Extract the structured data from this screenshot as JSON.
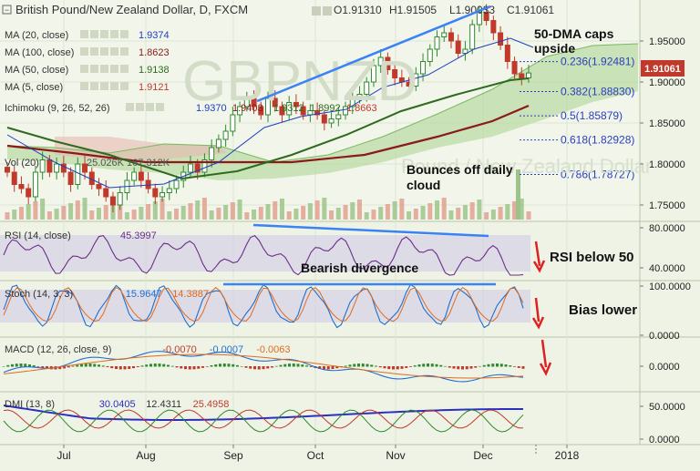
{
  "header": {
    "title": "British Pound/New Zealand Dollar, D, FXCM",
    "o": "O1.91310",
    "h": "H1.91505",
    "l": "L1.90033",
    "c": "C1.91061"
  },
  "price_badge": "1.91061",
  "watermark": "GBPNZD",
  "watermark2": "Pound / New Zealand Dollar",
  "indicators": [
    {
      "label": "MA (20, close)",
      "value": "1.9374",
      "color": "#1f3fbf"
    },
    {
      "label": "MA (100, close)",
      "value": "1.8623",
      "color": "#8b1a1a"
    },
    {
      "label": "MA (50, close)",
      "value": "1.9138",
      "color": "#2e6b1e"
    },
    {
      "label": "MA (5, close)",
      "value": "1.9121",
      "color": "#c0392b"
    }
  ],
  "ichimoku": {
    "label": "Ichimoku (9, 26, 52, 26)",
    "v1": "1.9370",
    "v2": "1.9403",
    "v3": "1.9312",
    "v4": "1.8992",
    "v5": "1.8663"
  },
  "volume_label": "Vol (20)",
  "volume_values": "25.026K  167.312K",
  "annotations": {
    "dma": "50-DMA caps upside",
    "cloud": "Bounces off daily cloud",
    "rsi": "RSI below 50",
    "divergence": "Bearish divergence",
    "bias": "Bias lower"
  },
  "fib_levels": [
    {
      "label": "0.236(1.92481)",
      "value": 1.92481
    },
    {
      "label": "0.382(1.88830)",
      "value": 1.8883
    },
    {
      "label": "0.5(1.85879)",
      "value": 1.85879
    },
    {
      "label": "0.618(1.82928)",
      "value": 1.82928
    },
    {
      "label": "0.786(1.78727)",
      "value": 1.78727
    }
  ],
  "rsi": {
    "label": "RSI (14, close)",
    "value": "45.3997",
    "ticks": [
      "80.0000",
      "40.0000"
    ]
  },
  "stoch": {
    "label": "Stoch (14, 3, 3)",
    "v1": "15.9647",
    "v2": "14.3887",
    "ticks": [
      "100.0000",
      "0.0000"
    ]
  },
  "macd": {
    "label": "MACD (12, 26, close, 9)",
    "v1": "-0.0070",
    "v2": "-0.0007",
    "v3": "-0.0063",
    "ticks": [
      "0.0000"
    ]
  },
  "dmi": {
    "label": "DMI (13, 8)",
    "v1": "30.0405",
    "v2": "12.4311",
    "v3": "25.4958",
    "ticks": [
      "50.0000",
      "0.0000"
    ]
  },
  "colors": {
    "bg": "#eef3e6",
    "up": "#2f8a2f",
    "down": "#c0392b",
    "cloud": "#b5d79b",
    "cloud_red": "#e8b9b0",
    "trend": "#3b82f6",
    "osc_fill": "#d0c8e6"
  },
  "chart_data": {
    "type": "candlestick",
    "y_ticks": [
      "1.95000",
      "1.90000",
      "1.85000",
      "1.80000",
      "1.75000"
    ],
    "ylim": [
      1.73,
      2.0
    ],
    "x_ticks": [
      "Jul",
      "Aug",
      "Sep",
      "Oct",
      "Nov",
      "Dec",
      "2018"
    ],
    "series": [
      {
        "name": "Price",
        "values": [
          1.79,
          1.775,
          1.77,
          1.76,
          1.79,
          1.805,
          1.79,
          1.8,
          1.79,
          1.775,
          1.8,
          1.79,
          1.775,
          1.77,
          1.76,
          1.75,
          1.765,
          1.78,
          1.79,
          1.78,
          1.77,
          1.76,
          1.765,
          1.77,
          1.78,
          1.79,
          1.8,
          1.79,
          1.805,
          1.82,
          1.83,
          1.84,
          1.86,
          1.87,
          1.88,
          1.87,
          1.86,
          1.88,
          1.87,
          1.86,
          1.875,
          1.87,
          1.86,
          1.865,
          1.86,
          1.85,
          1.855,
          1.86,
          1.87,
          1.88,
          1.885,
          1.9,
          1.92,
          1.93,
          1.915,
          1.905,
          1.9,
          1.895,
          1.91,
          1.925,
          1.94,
          1.955,
          1.96,
          1.95,
          1.935,
          1.94,
          1.97,
          1.985,
          1.975,
          1.96,
          1.945,
          1.925,
          1.91,
          1.905,
          1.911
        ]
      }
    ],
    "fib_levels_value": [
      1.92481,
      1.8883,
      1.85879,
      1.82928,
      1.78727
    ]
  }
}
